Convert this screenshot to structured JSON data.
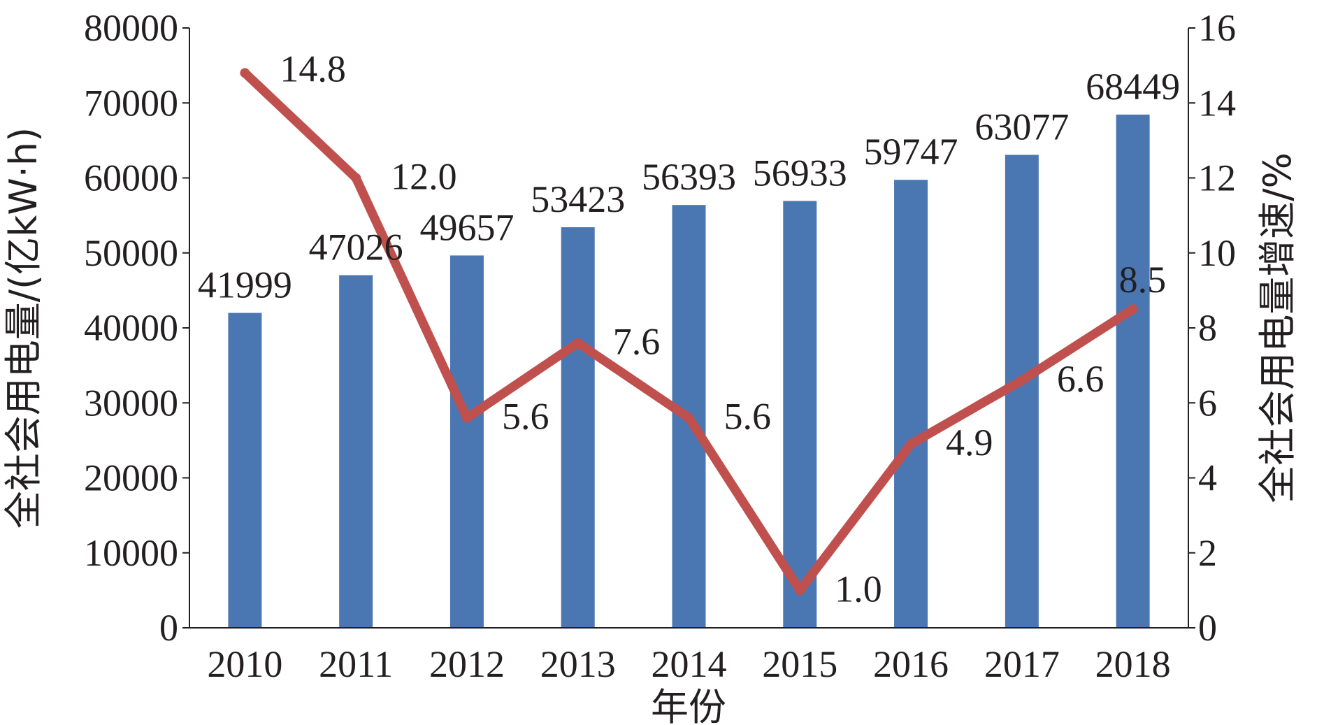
{
  "chart_data": {
    "type": "bar",
    "categories": [
      "2010",
      "2011",
      "2012",
      "2013",
      "2014",
      "2015",
      "2016",
      "2017",
      "2018"
    ],
    "series": [
      {
        "type": "bar",
        "axis": "left",
        "values": [
          41999,
          47026,
          49657,
          53423,
          56393,
          56933,
          59747,
          63077,
          68449
        ]
      },
      {
        "type": "line",
        "axis": "right",
        "values": [
          14.8,
          12.0,
          5.6,
          7.6,
          5.6,
          1.0,
          4.9,
          6.6,
          8.5
        ]
      }
    ],
    "bar_labels": [
      "41999",
      "47026",
      "49657",
      "53423",
      "56393",
      "56933",
      "59747",
      "63077",
      "68449"
    ],
    "line_labels": [
      "14.8",
      "12.0",
      "5.6",
      "7.6",
      "5.6",
      "1.0",
      "4.9",
      "6.6",
      "8.5"
    ],
    "xlabel": "年份",
    "ylabel_left": "全社会用电量/(亿kW·h)",
    "ylabel_right": "全社会用电量增速/%",
    "ylim_left": [
      0,
      80000
    ],
    "ylim_right": [
      0,
      16
    ],
    "yticks_left": [
      "0",
      "10000",
      "20000",
      "30000",
      "40000",
      "50000",
      "60000",
      "70000",
      "80000"
    ],
    "yticks_right": [
      "0",
      "2",
      "4",
      "6",
      "8",
      "10",
      "12",
      "14",
      "16"
    ],
    "grid": false,
    "legend": "none",
    "colors": {
      "bar": "#4a77b2",
      "line": "#c0504d",
      "axis": "#231f20"
    }
  }
}
